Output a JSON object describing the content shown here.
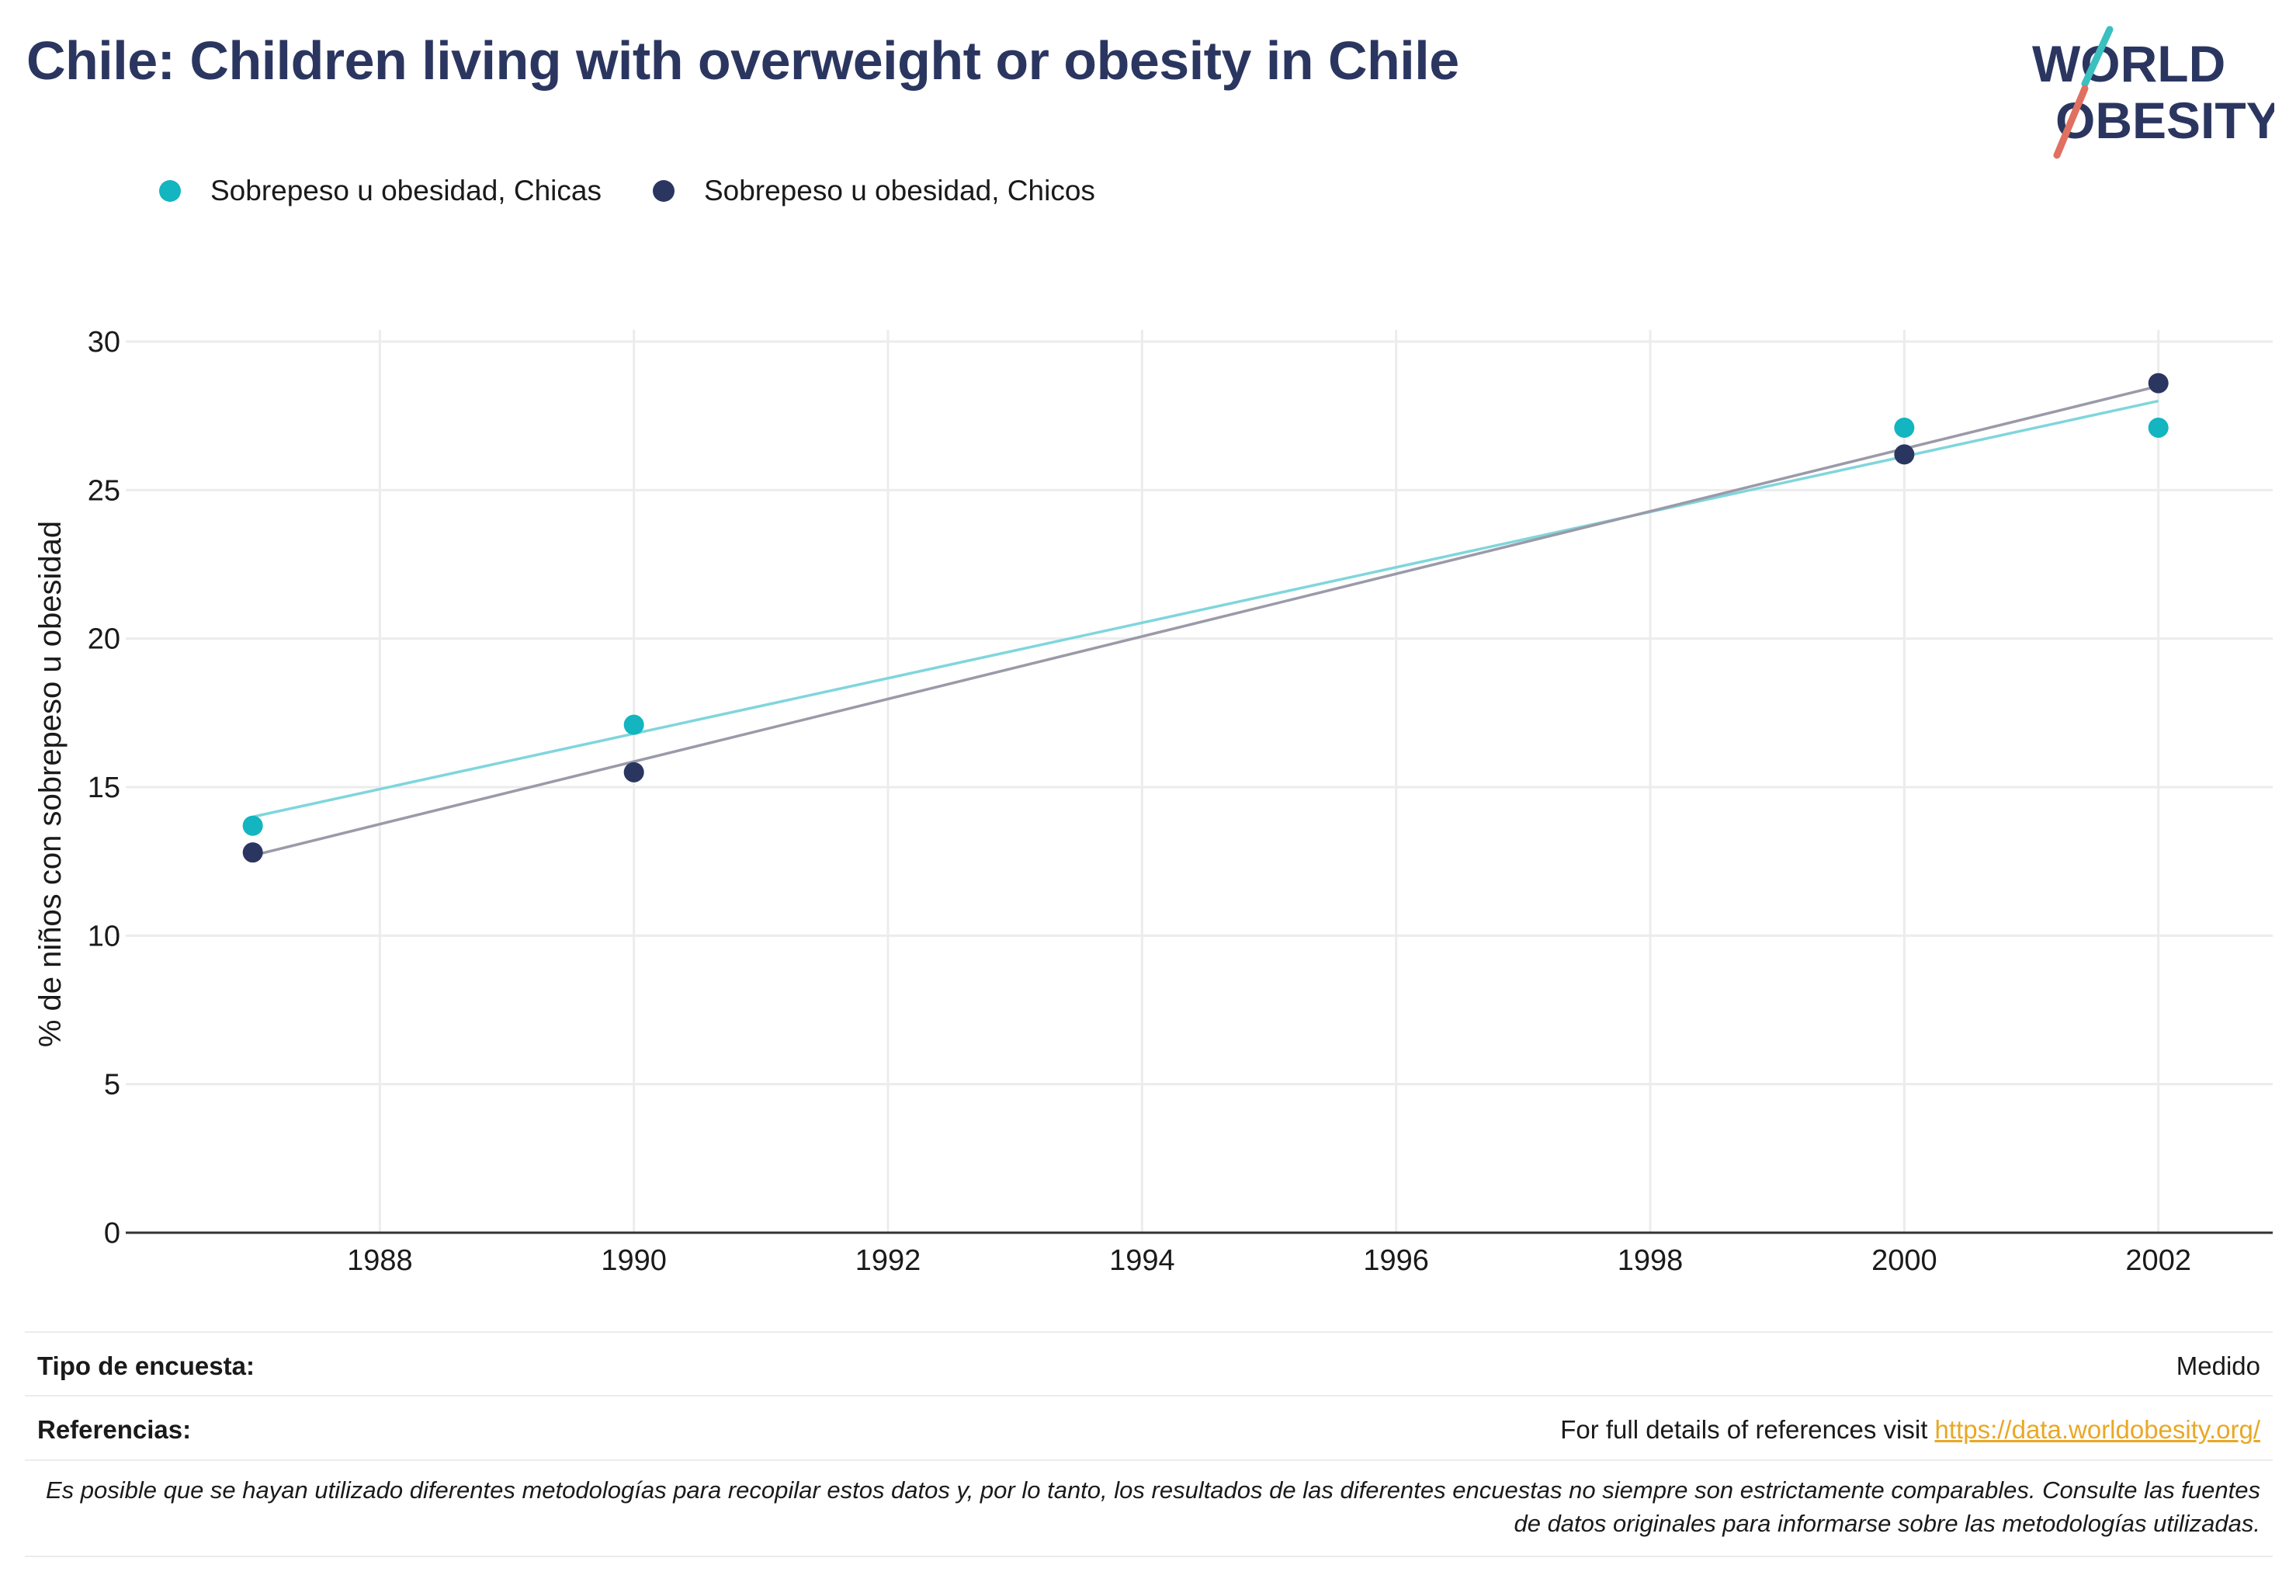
{
  "title": "Chile: Children living with overweight or obesity in Chile",
  "logo": {
    "line1": "WORLD",
    "line2": "OBESITY",
    "colors": {
      "teal": "#3bbfbf",
      "coral": "#e07060",
      "navy": "#2b3660"
    }
  },
  "legend": [
    {
      "label": "Sobrepeso u obesidad, Chicas",
      "color": "#12b5c0"
    },
    {
      "label": "Sobrepeso u obesidad, Chicos",
      "color": "#2b3660"
    }
  ],
  "chart_data": {
    "type": "scatter",
    "ylabel": "% de niños con sobrepeso u obesidad",
    "xlabel": "",
    "xlim": [
      1986.0,
      2002.9
    ],
    "ylim": [
      0,
      30
    ],
    "x_ticks": [
      1988,
      1990,
      1992,
      1994,
      1996,
      1998,
      2000,
      2002
    ],
    "y_ticks": [
      0,
      5,
      10,
      15,
      20,
      25,
      30
    ],
    "grid": true,
    "legend_position": "top-left",
    "series": [
      {
        "name": "Sobrepeso u obesidad, Chicas",
        "color": "#12b5c0",
        "trend_color": "#7fd6dc",
        "points": [
          {
            "x": 1987,
            "y": 13.7
          },
          {
            "x": 1990,
            "y": 17.1
          },
          {
            "x": 2000,
            "y": 27.1
          },
          {
            "x": 2002,
            "y": 27.1
          }
        ],
        "trend": [
          {
            "x": 1987,
            "y": 14.0
          },
          {
            "x": 2002,
            "y": 28.0
          }
        ]
      },
      {
        "name": "Sobrepeso u obesidad, Chicos",
        "color": "#2b3660",
        "trend_color": "#9a9aa8",
        "points": [
          {
            "x": 1987,
            "y": 12.8
          },
          {
            "x": 1990,
            "y": 15.5
          },
          {
            "x": 2000,
            "y": 26.2
          },
          {
            "x": 2002,
            "y": 28.6
          }
        ],
        "trend": [
          {
            "x": 1987,
            "y": 12.7
          },
          {
            "x": 2002,
            "y": 28.5
          }
        ]
      }
    ]
  },
  "footer": {
    "survey_label": "Tipo de encuesta:",
    "survey_value": "Medido",
    "references_label": "Referencias:",
    "references_text": "For full details of references visit ",
    "references_link": "https://data.worldobesity.org/",
    "note": "Es posible que se hayan utilizado diferentes metodologías para recopilar estos datos y, por lo tanto, los resultados de las diferentes encuestas no siempre son estrictamente comparables. Consulte las fuentes de datos originales para informarse sobre las metodologías utilizadas."
  }
}
